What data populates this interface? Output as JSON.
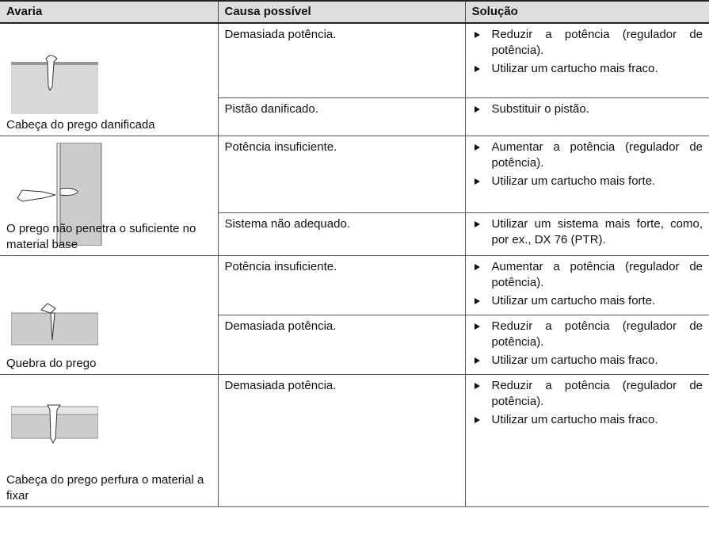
{
  "header": [
    "Avaria",
    "Causa possível",
    "Solução"
  ],
  "rows": [
    {
      "fault": "Cabeça do prego danificada",
      "causes": [
        {
          "cause": "Demasiada potência.",
          "solutions": [
            "Reduzir a potência (regulador de potência).",
            "Utilizar um cartucho mais fraco."
          ]
        },
        {
          "cause": "Pistão danificado.",
          "solutions": [
            "Substituir o pistão."
          ]
        }
      ]
    },
    {
      "fault": "O prego não penetra o suficiente no material base",
      "causes": [
        {
          "cause": "Potência insuficiente.",
          "solutions": [
            "Aumentar a potência (regulador de potência).",
            "Utilizar um cartucho mais forte."
          ]
        },
        {
          "cause": "Sistema não adequado.",
          "solutions": [
            "Utilizar um sistema mais forte, como, por ex., DX 76 (PTR)."
          ]
        }
      ]
    },
    {
      "fault": "Quebra do prego",
      "causes": [
        {
          "cause": "Potência insuficiente.",
          "solutions": [
            "Aumentar a potência (regulador de potência).",
            "Utilizar um cartucho mais forte."
          ]
        },
        {
          "cause": "Demasiada potência.",
          "solutions": [
            "Reduzir a potência (regulador de potência).",
            "Utilizar um cartucho mais fraco."
          ]
        }
      ]
    },
    {
      "fault": "Cabeça do prego perfura o material a fixar",
      "causes": [
        {
          "cause": "Demasiada potência.",
          "solutions": [
            "Reduzir a potência (regulador de potência).",
            "Utilizar um cartucho mais fraco."
          ]
        }
      ]
    }
  ]
}
